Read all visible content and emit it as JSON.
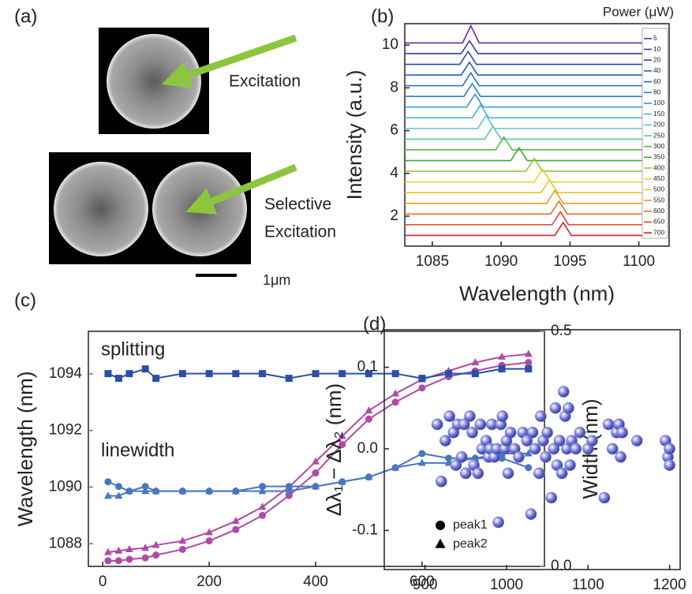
{
  "panel_a": {
    "label": "(a)",
    "excitation": "Excitation",
    "selective": [
      "Selective",
      "Excitation"
    ],
    "scale_bar": "1μm"
  },
  "chart_data": [
    {
      "type": "spectra",
      "label": "(b)",
      "xlabel": "Wavelength (nm)",
      "ylabel": "Intensity (a.u.)",
      "xlim": [
        1083,
        1102.2
      ],
      "xticks": [
        1085,
        1090,
        1095,
        1100
      ],
      "ylim": [
        0.6,
        11.0
      ],
      "yticks": [
        2,
        4,
        6,
        8,
        10
      ],
      "legend": "right",
      "legend_title": "Power (μW)",
      "series": [
        {
          "name": "5",
          "color": "#6a2c91",
          "x": [
            1083,
            1087.2,
            1087.8,
            1088.4,
            1102
          ],
          "values": [
            10.1,
            10.1,
            10.9,
            10.1,
            10.1
          ]
        },
        {
          "name": "10",
          "color": "#3b3a9a",
          "x": [
            1083,
            1087.1,
            1087.7,
            1088.3,
            1102
          ],
          "values": [
            9.6,
            9.6,
            10.2,
            9.6,
            9.6
          ]
        },
        {
          "name": "20",
          "color": "#2f4aa8",
          "x": [
            1083,
            1087.0,
            1087.6,
            1088.2,
            1102
          ],
          "values": [
            9.1,
            9.1,
            9.7,
            9.1,
            9.1
          ]
        },
        {
          "name": "40",
          "color": "#2a5bb5",
          "x": [
            1083,
            1087.1,
            1087.7,
            1088.3,
            1102
          ],
          "values": [
            8.6,
            8.6,
            9.2,
            8.6,
            8.6
          ]
        },
        {
          "name": "60",
          "color": "#2868c0",
          "x": [
            1083,
            1087.2,
            1087.8,
            1088.4,
            1102
          ],
          "values": [
            8.1,
            8.1,
            8.7,
            8.1,
            8.1
          ]
        },
        {
          "name": "80",
          "color": "#2f7fcf",
          "x": [
            1083,
            1087.3,
            1087.9,
            1088.5,
            1102
          ],
          "values": [
            7.6,
            7.6,
            8.2,
            7.6,
            7.6
          ]
        },
        {
          "name": "100",
          "color": "#3a95d8",
          "x": [
            1083,
            1087.5,
            1088.1,
            1088.7,
            1102
          ],
          "values": [
            7.1,
            7.1,
            7.7,
            7.1,
            7.1
          ]
        },
        {
          "name": "150",
          "color": "#52b0e0",
          "x": [
            1083,
            1087.9,
            1088.5,
            1089.1,
            1102
          ],
          "values": [
            6.6,
            6.6,
            7.2,
            6.6,
            6.6
          ]
        },
        {
          "name": "200",
          "color": "#63c3d8",
          "x": [
            1083,
            1088.3,
            1088.9,
            1089.5,
            1102
          ],
          "values": [
            6.1,
            6.1,
            6.7,
            6.1,
            6.1
          ]
        },
        {
          "name": "250",
          "color": "#5cc6a8",
          "x": [
            1083,
            1088.8,
            1089.4,
            1090.0,
            1102
          ],
          "values": [
            5.6,
            5.6,
            6.2,
            5.6,
            5.6
          ]
        },
        {
          "name": "300",
          "color": "#58b84a",
          "x": [
            1083,
            1089.6,
            1090.2,
            1090.8,
            1102
          ],
          "values": [
            5.1,
            5.1,
            5.7,
            5.1,
            5.1
          ]
        },
        {
          "name": "350",
          "color": "#3fa83a",
          "x": [
            1083,
            1090.7,
            1091.3,
            1091.9,
            1102
          ],
          "values": [
            4.6,
            4.6,
            5.2,
            4.6,
            4.6
          ]
        },
        {
          "name": "400",
          "color": "#9cc436",
          "x": [
            1083,
            1091.8,
            1092.4,
            1093.0,
            1102
          ],
          "values": [
            4.1,
            4.1,
            4.7,
            4.1,
            4.1
          ]
        },
        {
          "name": "450",
          "color": "#e5d62a",
          "x": [
            1083,
            1092.4,
            1093.0,
            1093.6,
            1102
          ],
          "values": [
            3.6,
            3.6,
            4.2,
            3.6,
            3.6
          ]
        },
        {
          "name": "500",
          "color": "#f2c21c",
          "x": [
            1083,
            1092.9,
            1093.5,
            1094.1,
            1102
          ],
          "values": [
            3.1,
            3.1,
            3.7,
            3.1,
            3.1
          ]
        },
        {
          "name": "550",
          "color": "#f29a1c",
          "x": [
            1083,
            1093.3,
            1093.9,
            1094.5,
            1102
          ],
          "values": [
            2.6,
            2.6,
            3.2,
            2.6,
            2.6
          ]
        },
        {
          "name": "600",
          "color": "#ef6d22",
          "x": [
            1083,
            1093.6,
            1094.2,
            1094.8,
            1102
          ],
          "values": [
            2.1,
            2.1,
            2.7,
            2.1,
            2.1
          ]
        },
        {
          "name": "650",
          "color": "#e0402a",
          "x": [
            1083,
            1093.7,
            1094.3,
            1094.9,
            1102
          ],
          "values": [
            1.6,
            1.6,
            2.2,
            1.6,
            1.6
          ]
        },
        {
          "name": "700",
          "color": "#d0232a",
          "x": [
            1083,
            1093.9,
            1094.5,
            1095.1,
            1102
          ],
          "values": [
            1.1,
            1.1,
            1.7,
            1.1,
            1.1
          ]
        }
      ]
    },
    {
      "type": "line",
      "label": "(c)",
      "ylabel": "Wavelength (nm)",
      "y2label": "Width (nm)",
      "ycolor": "#b04aa8",
      "y2color": "#6f7fbf",
      "xlim": [
        -27,
        830
      ],
      "xticks": [
        0,
        200,
        400,
        600
      ],
      "ylim": [
        1087.2,
        1095.5
      ],
      "yticks": [
        1088,
        1090,
        1092,
        1094
      ],
      "y2lim": [
        0,
        0.5
      ],
      "y2ticks": [
        {
          "value": 0,
          "label": "0.0"
        },
        0.5
      ],
      "x": [
        10,
        30,
        50,
        80,
        100,
        150,
        200,
        250,
        300,
        350,
        400,
        450,
        500,
        550,
        600,
        650,
        700,
        750,
        800
      ],
      "annotations": [
        {
          "text": "splitting",
          "color": "#1f3f8f"
        },
        {
          "text": "linewidth",
          "color": "#2f86b5"
        }
      ],
      "legend": [
        {
          "name": "peak1",
          "marker": "circle"
        },
        {
          "name": "peak2",
          "marker": "triangle"
        }
      ],
      "series": [
        {
          "color": "#b04aa8",
          "marker": "circle",
          "values": [
            1087.4,
            1087.4,
            1087.45,
            1087.5,
            1087.6,
            1087.8,
            1088.1,
            1088.5,
            1089.0,
            1089.7,
            1090.5,
            1091.5,
            1092.4,
            1093.0,
            1093.5,
            1093.9,
            1094.1,
            1094.3,
            1094.4
          ]
        },
        {
          "color": "#b04aa8",
          "marker": "triangle",
          "values": [
            1087.7,
            1087.75,
            1087.8,
            1087.85,
            1087.95,
            1088.1,
            1088.4,
            1088.8,
            1089.3,
            1090.0,
            1090.9,
            1091.8,
            1092.7,
            1093.3,
            1093.8,
            1094.1,
            1094.4,
            1094.6,
            1094.7
          ]
        },
        {
          "color": "#2b4fa8",
          "marker": "square",
          "axis": "y2",
          "values": [
            0.41,
            0.4,
            0.41,
            0.42,
            0.4,
            0.41,
            0.41,
            0.41,
            0.41,
            0.4,
            0.41,
            0.41,
            0.41,
            0.41,
            0.4,
            0.41,
            0.41,
            0.42,
            0.42
          ]
        },
        {
          "color": "#4a76c0",
          "marker": "circle",
          "axis": "y2",
          "values": [
            0.18,
            0.17,
            0.16,
            0.17,
            0.16,
            0.16,
            0.16,
            0.16,
            0.17,
            0.17,
            0.17,
            0.18,
            0.19,
            0.21,
            0.24,
            0.23,
            0.23,
            0.23,
            0.21
          ]
        },
        {
          "color": "#4a76c0",
          "marker": "triangle",
          "axis": "y2",
          "values": [
            0.15,
            0.15,
            0.16,
            0.16,
            0.16,
            0.16,
            0.16,
            0.16,
            0.16,
            0.16,
            0.17,
            0.18,
            0.19,
            0.21,
            0.22,
            0.22,
            0.23,
            0.24,
            0.24
          ]
        }
      ]
    },
    {
      "type": "scatter",
      "label": "(d)",
      "ylabel": "Δλ₁ − Δλ₂ (nm)",
      "color": "#6f74d8",
      "xlim": [
        850,
        1213
      ],
      "xticks": [
        900,
        1000,
        1100,
        1200
      ],
      "ylim": [
        -0.148,
        0.146
      ],
      "yticks": [
        -0.1,
        {
          "value": 0,
          "label": "0.0"
        },
        0.1
      ],
      "x": [
        915,
        920,
        925,
        930,
        935,
        938,
        940,
        945,
        948,
        950,
        955,
        958,
        960,
        965,
        968,
        970,
        975,
        978,
        980,
        982,
        985,
        988,
        990,
        993,
        995,
        998,
        1000,
        1002,
        1005,
        1010,
        1015,
        1020,
        1025,
        1030,
        1032,
        1035,
        1040,
        1042,
        1045,
        1048,
        1050,
        1055,
        1058,
        1060,
        1062,
        1065,
        1068,
        1070,
        1072,
        1074,
        1076,
        1078,
        1080,
        1085,
        1090,
        1100,
        1105,
        1120,
        1125,
        1130,
        1135,
        1138,
        1140,
        1142,
        1160,
        1195,
        1198,
        1200,
        1200
      ],
      "values": [
        0.03,
        -0.04,
        0.01,
        0.04,
        0.02,
        -0.02,
        0.03,
        -0.01,
        0.03,
        -0.03,
        0.04,
        0.02,
        -0.02,
        -0.03,
        0.03,
        0.0,
        0.01,
        -0.01,
        0.0,
        0.03,
        -0.01,
        0.0,
        -0.09,
        0.03,
        0.04,
        0.0,
        0.01,
        -0.03,
        0.02,
        0.0,
        -0.01,
        0.02,
        0.01,
        -0.08,
        0.02,
        0.0,
        -0.03,
        0.04,
        0.01,
        -0.01,
        0.02,
        -0.06,
        0.0,
        0.05,
        -0.02,
        0.01,
        -0.03,
        0.07,
        0.04,
        0.0,
        0.05,
        -0.02,
        0.01,
        0.0,
        0.02,
        0.0,
        0.01,
        -0.06,
        0.03,
        0.0,
        0.02,
        0.03,
        -0.01,
        0.02,
        0.01,
        0.01,
        -0.01,
        -0.02,
        0.0
      ]
    }
  ]
}
